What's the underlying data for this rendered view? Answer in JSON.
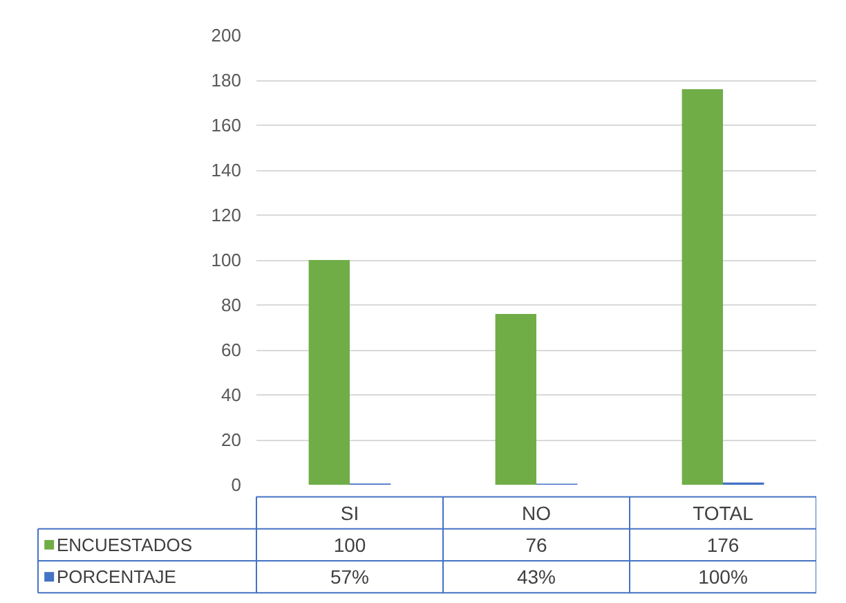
{
  "chart_data": {
    "type": "bar",
    "categories": [
      "SI",
      "NO",
      "TOTAL"
    ],
    "series": [
      {
        "name": "ENCUESTADOS",
        "color": "#70ad47",
        "values": [
          100,
          76,
          176
        ],
        "value_labels": [
          "100",
          "76",
          "176"
        ]
      },
      {
        "name": "PORCENTAJE",
        "color": "#4472c4",
        "values": [
          0.57,
          0.43,
          1.0
        ],
        "value_labels": [
          "57%",
          "43%",
          "100%"
        ]
      }
    ],
    "ylim": [
      0,
      200
    ],
    "yticks": [
      0,
      20,
      40,
      60,
      80,
      100,
      120,
      140,
      160,
      180,
      200
    ],
    "grid": "y",
    "legend": "bottom"
  }
}
